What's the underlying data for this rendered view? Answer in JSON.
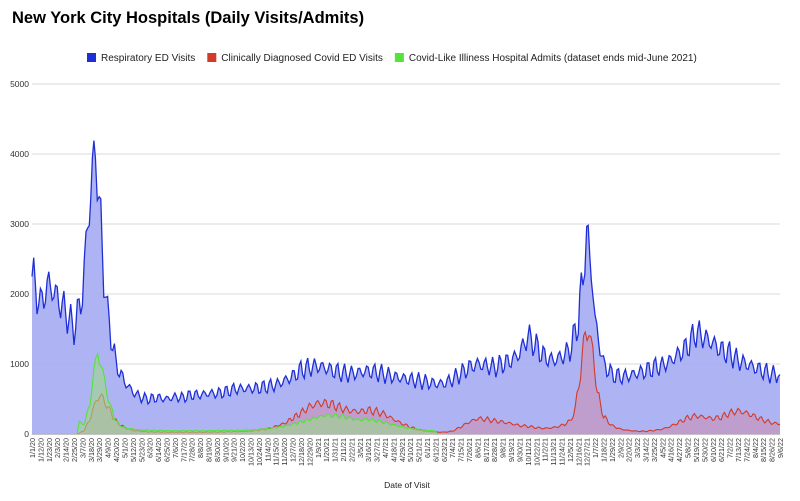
{
  "chart_data": {
    "type": "area",
    "title": "New York City Hospitals (Daily Visits/Admits)",
    "xlabel": "Date of Visit",
    "ylabel": "",
    "ylim": [
      0,
      5000
    ],
    "yticks": [
      0,
      1000,
      2000,
      3000,
      4000,
      5000
    ],
    "grid": true,
    "legend_position": "top",
    "x_start": "2020-01-01",
    "x_end": "2022-09-06",
    "xtick_labels": [
      "1/1/20",
      "1/12/20",
      "1/23/20",
      "2/3/20",
      "2/14/20",
      "2/25/20",
      "3/7/20",
      "3/18/20",
      "3/29/20",
      "4/9/20",
      "4/20/20",
      "5/1/20",
      "5/12/20",
      "5/23/20",
      "6/3/20",
      "6/14/20",
      "6/25/20",
      "7/6/20",
      "7/17/20",
      "7/28/20",
      "8/8/20",
      "8/19/20",
      "8/30/20",
      "9/10/20",
      "9/21/20",
      "10/2/20",
      "10/13/20",
      "10/24/20",
      "11/4/20",
      "11/15/20",
      "11/26/20",
      "12/7/20",
      "12/18/20",
      "12/29/20",
      "1/9/21",
      "1/20/21",
      "1/31/21",
      "2/11/21",
      "2/22/21",
      "3/5/21",
      "3/16/21",
      "3/27/21",
      "4/7/21",
      "4/18/21",
      "4/29/21",
      "5/10/21",
      "5/21/21",
      "6/1/21",
      "6/12/21",
      "6/23/21",
      "7/4/21",
      "7/15/21",
      "7/26/21",
      "8/6/21",
      "8/17/21",
      "8/28/21",
      "9/8/21",
      "9/19/21",
      "9/30/21",
      "10/11/21",
      "10/22/21",
      "11/2/21",
      "11/13/21",
      "11/24/21",
      "12/5/21",
      "12/16/21",
      "12/27/21",
      "1/7/22",
      "1/18/22",
      "1/29/22",
      "2/9/22",
      "2/20/22",
      "3/3/22",
      "3/14/22",
      "3/25/22",
      "4/5/22",
      "4/16/22",
      "4/27/22",
      "5/8/22",
      "5/19/22",
      "5/30/22",
      "6/10/22",
      "6/21/22",
      "7/2/22",
      "7/13/22",
      "7/24/22",
      "8/4/22",
      "8/15/22",
      "8/26/22",
      "9/6/22"
    ],
    "series": [
      {
        "name": "Respiratory ED Visits",
        "color": "#1f2fd6",
        "fill": "#aab0f2",
        "points": [
          [
            "2020-01-01",
            2250
          ],
          [
            "2020-01-12",
            1850
          ],
          [
            "2020-01-23",
            2150
          ],
          [
            "2020-02-03",
            1950
          ],
          [
            "2020-02-14",
            1750
          ],
          [
            "2020-02-25",
            1500
          ],
          [
            "2020-03-07",
            2000
          ],
          [
            "2020-03-14",
            3000
          ],
          [
            "2020-03-20",
            3700
          ],
          [
            "2020-03-24",
            4150
          ],
          [
            "2020-03-29",
            3300
          ],
          [
            "2020-04-04",
            2300
          ],
          [
            "2020-04-09",
            1700
          ],
          [
            "2020-04-20",
            1000
          ],
          [
            "2020-05-01",
            750
          ],
          [
            "2020-05-12",
            600
          ],
          [
            "2020-05-23",
            520
          ],
          [
            "2020-06-03",
            500
          ],
          [
            "2020-06-14",
            520
          ],
          [
            "2020-06-25",
            500
          ],
          [
            "2020-07-06",
            530
          ],
          [
            "2020-07-17",
            520
          ],
          [
            "2020-07-28",
            560
          ],
          [
            "2020-08-08",
            560
          ],
          [
            "2020-08-19",
            580
          ],
          [
            "2020-08-30",
            580
          ],
          [
            "2020-09-10",
            600
          ],
          [
            "2020-09-21",
            640
          ],
          [
            "2020-10-02",
            650
          ],
          [
            "2020-10-13",
            650
          ],
          [
            "2020-10-24",
            660
          ],
          [
            "2020-11-04",
            680
          ],
          [
            "2020-11-15",
            700
          ],
          [
            "2020-11-26",
            760
          ],
          [
            "2020-12-07",
            820
          ],
          [
            "2020-12-18",
            920
          ],
          [
            "2020-12-29",
            950
          ],
          [
            "2021-01-09",
            970
          ],
          [
            "2021-01-20",
            940
          ],
          [
            "2021-01-31",
            900
          ],
          [
            "2021-02-11",
            870
          ],
          [
            "2021-02-22",
            860
          ],
          [
            "2021-03-05",
            880
          ],
          [
            "2021-03-16",
            900
          ],
          [
            "2021-03-27",
            880
          ],
          [
            "2021-04-07",
            850
          ],
          [
            "2021-04-18",
            820
          ],
          [
            "2021-04-29",
            800
          ],
          [
            "2021-05-10",
            780
          ],
          [
            "2021-05-21",
            760
          ],
          [
            "2021-06-01",
            740
          ],
          [
            "2021-06-12",
            720
          ],
          [
            "2021-06-23",
            720
          ],
          [
            "2021-07-04",
            780
          ],
          [
            "2021-07-15",
            860
          ],
          [
            "2021-07-26",
            950
          ],
          [
            "2021-08-06",
            1000
          ],
          [
            "2021-08-17",
            980
          ],
          [
            "2021-08-28",
            950
          ],
          [
            "2021-09-08",
            1000
          ],
          [
            "2021-09-19",
            1050
          ],
          [
            "2021-09-30",
            1150
          ],
          [
            "2021-10-11",
            1400
          ],
          [
            "2021-10-22",
            1250
          ],
          [
            "2021-11-02",
            1100
          ],
          [
            "2021-11-13",
            1050
          ],
          [
            "2021-11-24",
            1100
          ],
          [
            "2021-12-05",
            1200
          ],
          [
            "2021-12-16",
            1600
          ],
          [
            "2021-12-22",
            2300
          ],
          [
            "2021-12-27",
            2850
          ],
          [
            "2022-01-02",
            2400
          ],
          [
            "2022-01-07",
            1600
          ],
          [
            "2022-01-18",
            1000
          ],
          [
            "2022-01-29",
            850
          ],
          [
            "2022-02-09",
            820
          ],
          [
            "2022-02-20",
            830
          ],
          [
            "2022-03-03",
            870
          ],
          [
            "2022-03-14",
            900
          ],
          [
            "2022-03-25",
            950
          ],
          [
            "2022-04-05",
            980
          ],
          [
            "2022-04-16",
            1050
          ],
          [
            "2022-04-27",
            1150
          ],
          [
            "2022-05-08",
            1250
          ],
          [
            "2022-05-19",
            1450
          ],
          [
            "2022-05-30",
            1380
          ],
          [
            "2022-06-10",
            1300
          ],
          [
            "2022-06-21",
            1200
          ],
          [
            "2022-07-02",
            1150
          ],
          [
            "2022-07-13",
            1050
          ],
          [
            "2022-07-24",
            1000
          ],
          [
            "2022-08-04",
            950
          ],
          [
            "2022-08-15",
            900
          ],
          [
            "2022-08-26",
            850
          ],
          [
            "2022-09-06",
            850
          ]
        ]
      },
      {
        "name": "Clinically Diagnosed Covid ED Visits",
        "color": "#d23a2a",
        "fill": "#c98eb4",
        "points": [
          [
            "2020-03-01",
            0
          ],
          [
            "2020-03-10",
            60
          ],
          [
            "2020-03-18",
            250
          ],
          [
            "2020-03-25",
            480
          ],
          [
            "2020-03-30",
            560
          ],
          [
            "2020-04-05",
            470
          ],
          [
            "2020-04-12",
            330
          ],
          [
            "2020-04-20",
            180
          ],
          [
            "2020-05-01",
            90
          ],
          [
            "2020-05-12",
            50
          ],
          [
            "2020-06-03",
            30
          ],
          [
            "2020-07-06",
            25
          ],
          [
            "2020-08-08",
            25
          ],
          [
            "2020-09-10",
            30
          ],
          [
            "2020-10-13",
            40
          ],
          [
            "2020-11-04",
            70
          ],
          [
            "2020-11-26",
            150
          ],
          [
            "2020-12-18",
            300
          ],
          [
            "2020-12-29",
            390
          ],
          [
            "2021-01-09",
            440
          ],
          [
            "2021-01-20",
            440
          ],
          [
            "2021-01-31",
            410
          ],
          [
            "2021-02-11",
            360
          ],
          [
            "2021-02-22",
            330
          ],
          [
            "2021-03-05",
            320
          ],
          [
            "2021-03-16",
            340
          ],
          [
            "2021-03-27",
            320
          ],
          [
            "2021-04-07",
            280
          ],
          [
            "2021-04-18",
            210
          ],
          [
            "2021-04-29",
            150
          ],
          [
            "2021-05-10",
            100
          ],
          [
            "2021-05-21",
            60
          ],
          [
            "2021-06-01",
            40
          ],
          [
            "2021-06-12",
            30
          ],
          [
            "2021-06-23",
            25
          ],
          [
            "2021-07-04",
            40
          ],
          [
            "2021-07-15",
            100
          ],
          [
            "2021-07-26",
            170
          ],
          [
            "2021-08-06",
            220
          ],
          [
            "2021-08-17",
            210
          ],
          [
            "2021-08-28",
            190
          ],
          [
            "2021-09-08",
            170
          ],
          [
            "2021-09-19",
            150
          ],
          [
            "2021-09-30",
            120
          ],
          [
            "2021-10-11",
            110
          ],
          [
            "2021-10-22",
            90
          ],
          [
            "2021-11-02",
            80
          ],
          [
            "2021-11-13",
            90
          ],
          [
            "2021-11-24",
            120
          ],
          [
            "2021-12-05",
            180
          ],
          [
            "2021-12-12",
            350
          ],
          [
            "2021-12-19",
            900
          ],
          [
            "2021-12-25",
            1450
          ],
          [
            "2021-12-30",
            1480
          ],
          [
            "2022-01-04",
            1150
          ],
          [
            "2022-01-10",
            600
          ],
          [
            "2022-01-18",
            250
          ],
          [
            "2022-01-29",
            120
          ],
          [
            "2022-02-09",
            70
          ],
          [
            "2022-02-20",
            50
          ],
          [
            "2022-03-03",
            40
          ],
          [
            "2022-03-14",
            40
          ],
          [
            "2022-03-25",
            50
          ],
          [
            "2022-04-05",
            70
          ],
          [
            "2022-04-16",
            110
          ],
          [
            "2022-04-27",
            170
          ],
          [
            "2022-05-08",
            230
          ],
          [
            "2022-05-19",
            260
          ],
          [
            "2022-05-30",
            240
          ],
          [
            "2022-06-10",
            220
          ],
          [
            "2022-06-21",
            240
          ],
          [
            "2022-07-02",
            300
          ],
          [
            "2022-07-13",
            330
          ],
          [
            "2022-07-24",
            300
          ],
          [
            "2022-08-04",
            250
          ],
          [
            "2022-08-15",
            200
          ],
          [
            "2022-08-26",
            160
          ],
          [
            "2022-09-06",
            140
          ]
        ]
      },
      {
        "name": "Covid-Like Illiness Hospital Admits (dataset ends mid-June 2021)",
        "color": "#55e23a",
        "fill": "#9ed88a",
        "points": [
          [
            "2020-02-29",
            0
          ],
          [
            "2020-03-03",
            160
          ],
          [
            "2020-03-10",
            150
          ],
          [
            "2020-03-17",
            450
          ],
          [
            "2020-03-22",
            900
          ],
          [
            "2020-03-27",
            1150
          ],
          [
            "2020-03-31",
            1000
          ],
          [
            "2020-04-05",
            750
          ],
          [
            "2020-04-10",
            500
          ],
          [
            "2020-04-17",
            250
          ],
          [
            "2020-04-25",
            120
          ],
          [
            "2020-05-05",
            80
          ],
          [
            "2020-05-20",
            60
          ],
          [
            "2020-06-10",
            50
          ],
          [
            "2020-07-10",
            45
          ],
          [
            "2020-08-10",
            45
          ],
          [
            "2020-09-10",
            50
          ],
          [
            "2020-10-10",
            55
          ],
          [
            "2020-11-04",
            75
          ],
          [
            "2020-11-26",
            110
          ],
          [
            "2020-12-18",
            170
          ],
          [
            "2021-01-09",
            240
          ],
          [
            "2021-01-20",
            270
          ],
          [
            "2021-01-31",
            260
          ],
          [
            "2021-02-11",
            250
          ],
          [
            "2021-02-22",
            220
          ],
          [
            "2021-03-05",
            200
          ],
          [
            "2021-03-16",
            210
          ],
          [
            "2021-03-27",
            190
          ],
          [
            "2021-04-07",
            160
          ],
          [
            "2021-04-18",
            130
          ],
          [
            "2021-04-29",
            100
          ],
          [
            "2021-05-10",
            80
          ],
          [
            "2021-05-21",
            65
          ],
          [
            "2021-06-01",
            55
          ],
          [
            "2021-06-12",
            45
          ],
          [
            "2021-06-15",
            0
          ]
        ]
      }
    ]
  }
}
